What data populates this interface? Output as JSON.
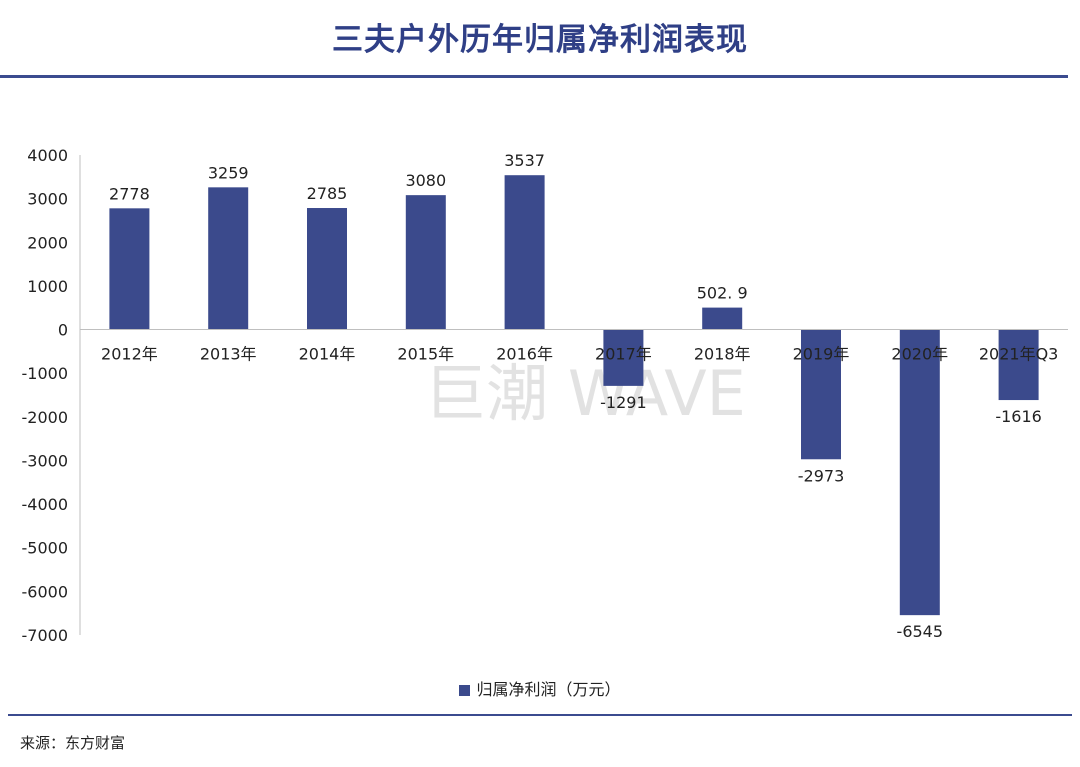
{
  "title": "三夫户外历年归属净利润表现",
  "watermark": "巨潮 WAVE",
  "source": "来源：东方财富",
  "legend_label": "归属净利润（万元）",
  "colors": {
    "bar": "#3b4a8c",
    "rule": "#3b4b8f",
    "title": "#2f3f86"
  },
  "chart_data": {
    "type": "bar",
    "categories": [
      "2012年",
      "2013年",
      "2014年",
      "2015年",
      "2016年",
      "2017年",
      "2018年",
      "2019年",
      "2020年",
      "2021年Q3"
    ],
    "series": [
      {
        "name": "归属净利润（万元）",
        "values": [
          2778,
          3259,
          2785,
          3080,
          3537,
          -1291,
          502.9,
          -2973,
          -6545,
          -1616
        ]
      }
    ],
    "data_labels": [
      "2778",
      "3259",
      "2785",
      "3080",
      "3537",
      "-1291",
      "502. 9",
      "-2973",
      "-6545",
      "-1616"
    ],
    "yticks": [
      4000,
      3000,
      2000,
      1000,
      0,
      -1000,
      -2000,
      -3000,
      -4000,
      -5000,
      -6000,
      -7000
    ],
    "ylim": [
      -7000,
      4000
    ],
    "grid": false,
    "legend_position": "bottom"
  }
}
